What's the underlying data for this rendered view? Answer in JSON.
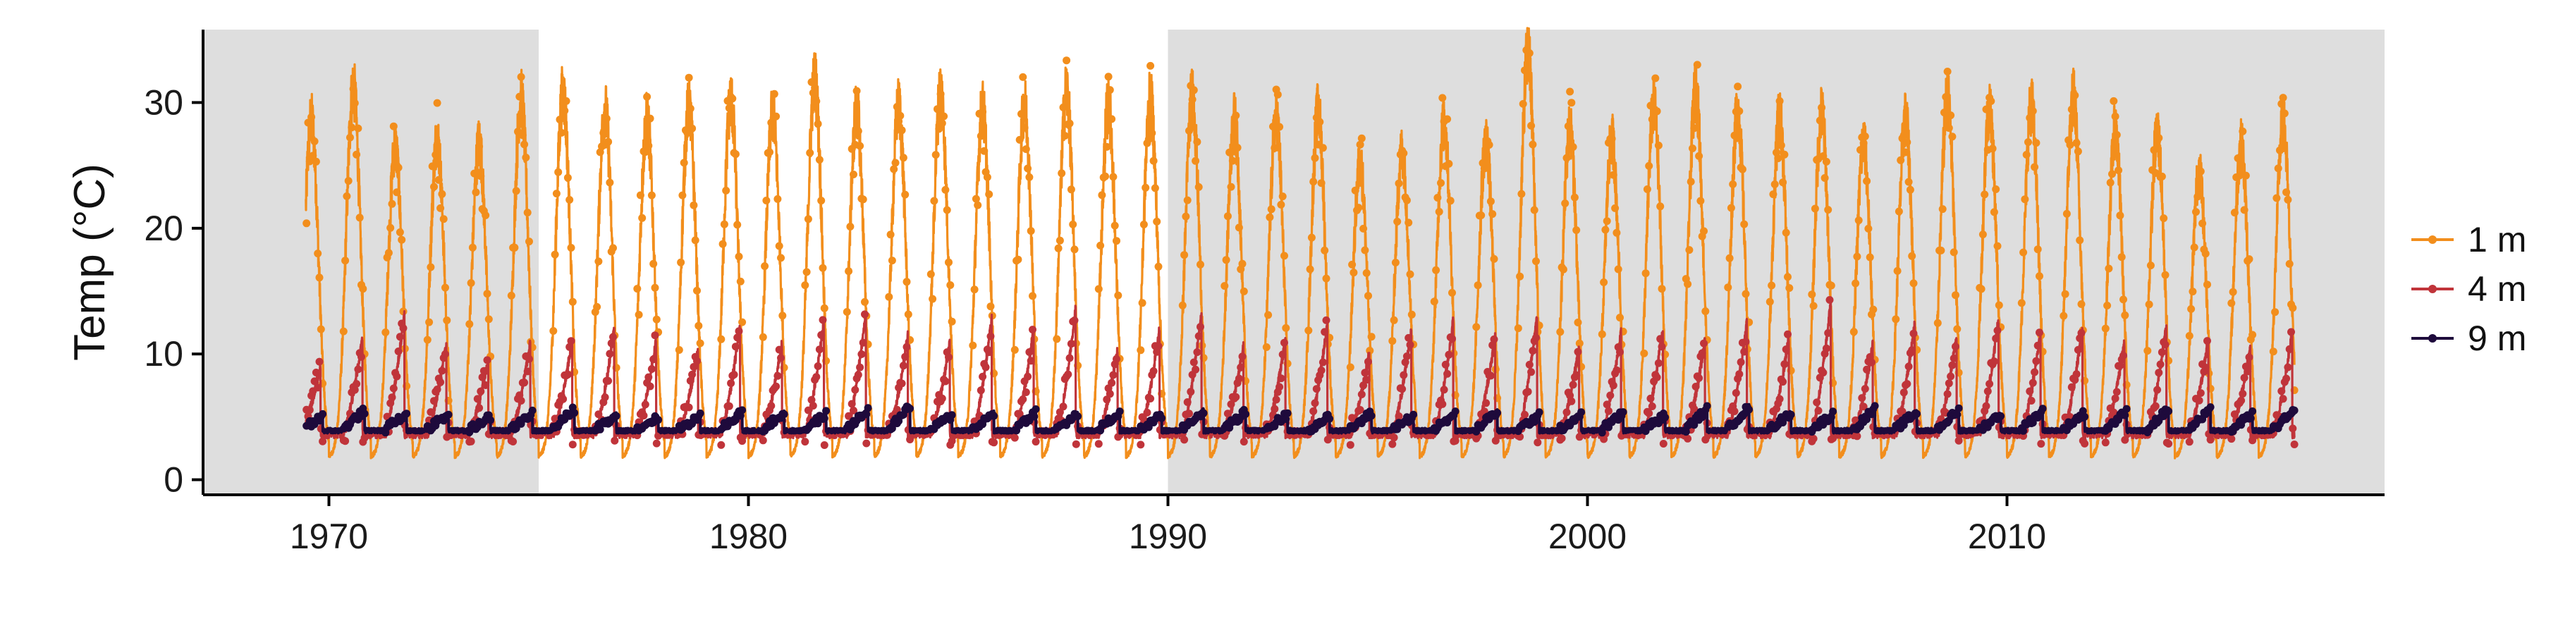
{
  "chart_data": {
    "type": "line",
    "ylabel": "Temp (°C)",
    "xlabel": "",
    "xlim": [
      1967.0,
      2019.0
    ],
    "ylim": [
      -1.2,
      35.8
    ],
    "x_ticks": [
      1970,
      1980,
      1990,
      2000,
      2010
    ],
    "y_ticks": [
      0,
      10,
      20,
      30
    ],
    "x_tick_labels": [
      "1970",
      "1980",
      "1990",
      "2000",
      "2010"
    ],
    "y_tick_labels": [
      "0",
      "10",
      "20",
      "30"
    ],
    "shaded_periods": [
      [
        1967.0,
        1975.0
      ],
      [
        1990.0,
        2019.0
      ]
    ],
    "grid": false,
    "legend_position": "right",
    "x_start": 1969.45,
    "x_end": 2016.85,
    "series": [
      {
        "name": "1 m",
        "color": "#f28e1c",
        "winter_min": 1.8,
        "annual_peaks": [
          28.6,
          31.2,
          26.5,
          27.1,
          26.8,
          30.3,
          30.8,
          29.5,
          28.6,
          29.6,
          30.2,
          29.1,
          31.8,
          29.4,
          29.7,
          30.9,
          29.5,
          29.8,
          30.9,
          29.7,
          30.2,
          30.5,
          28.6,
          28.8,
          29.3,
          25.2,
          26.1,
          28.4,
          26.9,
          33.9,
          27.9,
          27.1,
          29.7,
          30.9,
          29.3,
          28.8,
          29.1,
          26.8,
          28.7,
          30.3,
          29.6,
          29.8,
          30.4,
          27.8,
          27.6,
          24.5,
          26.6,
          28.4,
          27.3,
          28.9,
          29.2,
          28.6
        ]
      },
      {
        "name": "4 m",
        "color": "#c0343a",
        "winter_min": 3.7,
        "annual_peaks": [
          9.1,
          11.3,
          13.2,
          10.8,
          9.6,
          10.9,
          11.2,
          12.0,
          11.1,
          10.4,
          12.3,
          10.9,
          12.6,
          13.4,
          11.5,
          10.9,
          12.8,
          11.9,
          13.7,
          10.4,
          12.1,
          13.3,
          10.6,
          11.2,
          12.4,
          10.1,
          11.8,
          12.7,
          11.4,
          13.0,
          10.5,
          11.7,
          12.2,
          11.0,
          12.6,
          11.3,
          14.2,
          10.8,
          12.4,
          11.5,
          12.9,
          11.7,
          12.1,
          10.9,
          12.3,
          11.2,
          10.6,
          11.8,
          10.9,
          11.4,
          12.0,
          10.7
        ]
      },
      {
        "name": "9 m",
        "color": "#1e0a3c",
        "winter_min": 3.9,
        "annual_peaks": [
          5.1,
          5.5,
          5.3,
          5.2,
          5.0,
          5.3,
          5.6,
          5.2,
          5.0,
          5.1,
          5.4,
          5.3,
          5.2,
          5.5,
          5.8,
          5.1,
          5.3,
          5.4,
          5.2,
          5.3,
          5.1,
          5.5,
          5.4,
          5.2,
          5.0,
          5.3,
          5.1,
          5.2,
          5.4,
          5.1,
          5.2,
          5.3,
          5.1,
          5.6,
          5.8,
          5.3,
          5.2,
          5.6,
          5.4,
          5.5,
          5.2,
          5.5,
          5.3,
          5.4,
          5.6,
          5.5,
          5.2,
          5.4,
          5.1,
          5.3,
          5.2,
          5.4
        ]
      }
    ]
  }
}
